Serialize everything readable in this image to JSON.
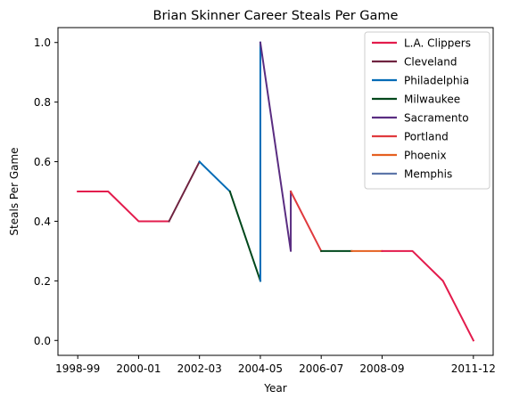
{
  "chart_data": {
    "type": "line",
    "title": "Brian Skinner Career Steals Per Game",
    "xlabel": "Year",
    "ylabel": "Steals Per Game",
    "x_categories": [
      "1998-99",
      "1999-00",
      "2000-01",
      "2001-02",
      "2002-03",
      "2003-04",
      "2004-05",
      "2005-06",
      "2006-07",
      "2007-08",
      "2008-09",
      "2009-10",
      "2010-11",
      "2011-12"
    ],
    "x_tick_labels": [
      "1998-99",
      "2000-01",
      "2002-03",
      "2004-05",
      "2006-07",
      "2008-09",
      "2011-12"
    ],
    "ylim": [
      -0.05,
      1.05
    ],
    "y_ticks": [
      0.0,
      0.2,
      0.4,
      0.6,
      0.8,
      1.0
    ],
    "y_tick_labels": [
      "0.0",
      "0.2",
      "0.4",
      "0.6",
      "0.8",
      "1.0"
    ],
    "legend_position": "top-right",
    "grid": false,
    "series": [
      {
        "name": "L.A. Clippers",
        "color": "#e31b4c",
        "points": [
          {
            "x": "1998-99",
            "y": 0.5
          },
          {
            "x": "1999-00",
            "y": 0.5
          },
          {
            "x": "2000-01",
            "y": 0.4
          },
          {
            "x": "2001-02",
            "y": 0.4
          }
        ]
      },
      {
        "name": "Cleveland",
        "color": "#6f2340",
        "points": [
          {
            "x": "2001-02",
            "y": 0.4
          },
          {
            "x": "2002-03",
            "y": 0.6
          }
        ]
      },
      {
        "name": "Philadelphia",
        "color": "#006bb6",
        "points": [
          {
            "x": "2002-03",
            "y": 0.6
          },
          {
            "x": "2003-04",
            "y": 0.5
          }
        ]
      },
      {
        "name": "Milwaukee",
        "color": "#00471b",
        "points": [
          {
            "x": "2003-04",
            "y": 0.5
          },
          {
            "x": "2004-05",
            "y": 0.2
          }
        ]
      },
      {
        "name": "Philadelphia",
        "color": "#006bb6",
        "points": [
          {
            "x": "2004-05",
            "y": 0.2
          },
          {
            "x": "2004-05",
            "y": 1.0
          }
        ]
      },
      {
        "name": "Sacramento",
        "color": "#5a2d81",
        "points": [
          {
            "x": "2004-05",
            "y": 1.0
          },
          {
            "x": "2005-06",
            "y": 0.3
          },
          {
            "x": "2005-06",
            "y": 0.5
          }
        ]
      },
      {
        "name": "Portland",
        "color": "#e03a3e",
        "points": [
          {
            "x": "2005-06",
            "y": 0.5
          },
          {
            "x": "2006-07",
            "y": 0.3
          }
        ]
      },
      {
        "name": "Milwaukee",
        "color": "#00471b",
        "points": [
          {
            "x": "2006-07",
            "y": 0.3
          },
          {
            "x": "2007-08",
            "y": 0.3
          }
        ]
      },
      {
        "name": "Phoenix",
        "color": "#e56020",
        "points": [
          {
            "x": "2007-08",
            "y": 0.3
          },
          {
            "x": "2008-09",
            "y": 0.3
          }
        ]
      },
      {
        "name": "L.A. Clippers",
        "color": "#e31b4c",
        "points": [
          {
            "x": "2008-09",
            "y": 0.3
          },
          {
            "x": "2009-10",
            "y": 0.3
          },
          {
            "x": "2010-11",
            "y": 0.2
          },
          {
            "x": "2011-12",
            "y": 0.0
          }
        ]
      }
    ],
    "legend": [
      {
        "name": "L.A. Clippers",
        "color": "#e31b4c"
      },
      {
        "name": "Cleveland",
        "color": "#6f2340"
      },
      {
        "name": "Philadelphia",
        "color": "#006bb6"
      },
      {
        "name": "Milwaukee",
        "color": "#00471b"
      },
      {
        "name": "Sacramento",
        "color": "#5a2d81"
      },
      {
        "name": "Portland",
        "color": "#e03a3e"
      },
      {
        "name": "Phoenix",
        "color": "#e56020"
      },
      {
        "name": "Memphis",
        "color": "#5d76a9"
      }
    ]
  }
}
